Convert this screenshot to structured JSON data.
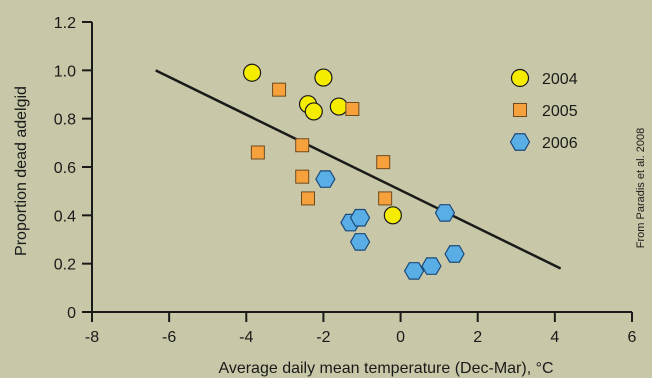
{
  "chart_data": {
    "type": "scatter",
    "xlabel": "Average daily mean temperature (Dec-Mar), °C",
    "ylabel": "Proportion dead adelgid",
    "xlim": [
      -8,
      6
    ],
    "ylim": [
      0,
      1.2
    ],
    "x_ticks": [
      -8,
      -6,
      -4,
      -2,
      0,
      2,
      4,
      6
    ],
    "x_tick_labels": [
      "-8",
      "-6",
      "-4",
      "-2",
      "0",
      "2",
      "4",
      "6"
    ],
    "y_ticks": [
      0,
      0.2,
      0.4,
      0.6,
      0.8,
      1.0,
      1.2
    ],
    "y_tick_labels": [
      "0",
      "0.2",
      "0.4",
      "0.6",
      "0.8",
      "1.0",
      "1.2"
    ],
    "grid": false,
    "legend_position": "top-right",
    "credit": "From Paradis et al. 2008",
    "series": [
      {
        "name": "2004",
        "marker": "circle",
        "color": "#f5ec00",
        "stroke": "#1a1a1a",
        "points": [
          {
            "x": -3.85,
            "y": 0.99
          },
          {
            "x": -2.0,
            "y": 0.97
          },
          {
            "x": -2.4,
            "y": 0.86
          },
          {
            "x": -2.25,
            "y": 0.83
          },
          {
            "x": -1.6,
            "y": 0.85
          },
          {
            "x": -0.2,
            "y": 0.4
          }
        ]
      },
      {
        "name": "2005",
        "marker": "square",
        "color": "#f7a13c",
        "stroke": "#6e4a1e",
        "points": [
          {
            "x": -3.15,
            "y": 0.92
          },
          {
            "x": -1.25,
            "y": 0.84
          },
          {
            "x": -3.7,
            "y": 0.66
          },
          {
            "x": -2.55,
            "y": 0.69
          },
          {
            "x": -0.45,
            "y": 0.62
          },
          {
            "x": -2.55,
            "y": 0.56
          },
          {
            "x": -0.4,
            "y": 0.47
          },
          {
            "x": -2.4,
            "y": 0.47
          }
        ]
      },
      {
        "name": "2006",
        "marker": "hexagon",
        "color": "#5aaee6",
        "stroke": "#1a4a7a",
        "points": [
          {
            "x": -1.95,
            "y": 0.55
          },
          {
            "x": -1.3,
            "y": 0.37
          },
          {
            "x": -1.05,
            "y": 0.39
          },
          {
            "x": -1.05,
            "y": 0.29
          },
          {
            "x": 1.15,
            "y": 0.41
          },
          {
            "x": 0.35,
            "y": 0.17
          },
          {
            "x": 0.8,
            "y": 0.19
          },
          {
            "x": 1.4,
            "y": 0.24
          }
        ]
      }
    ],
    "trendline": {
      "color": "#1a1a1a",
      "x": [
        -6.35,
        4.15
      ],
      "y": [
        1.0,
        0.18
      ]
    }
  }
}
